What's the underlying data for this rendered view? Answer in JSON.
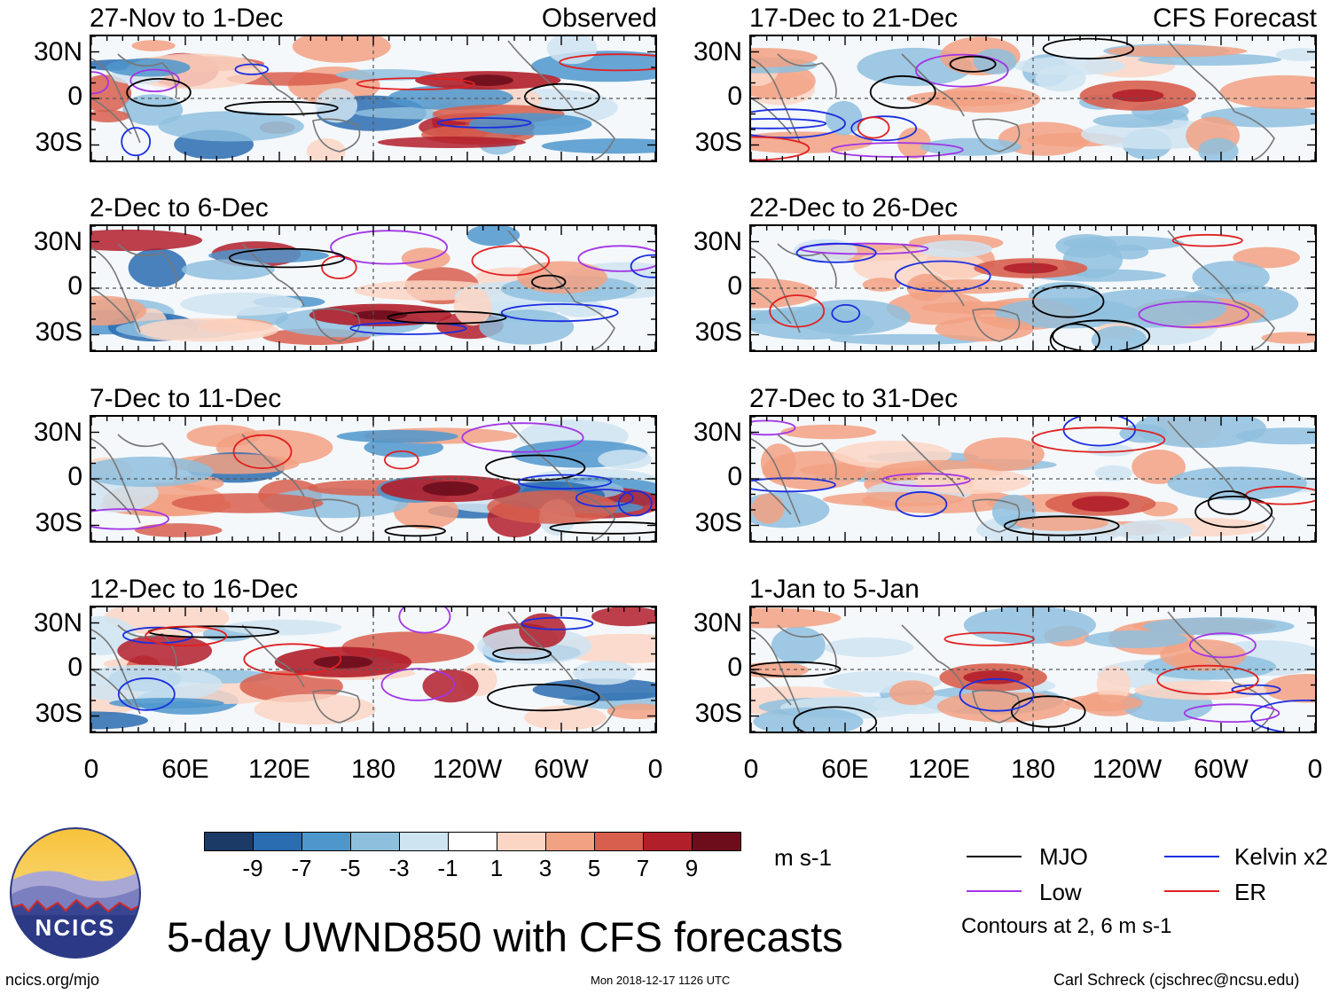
{
  "chart_data": {
    "type": "heatmap",
    "title": "5-day UWND850 with CFS forecasts",
    "variable": "UWND850",
    "units": "m s-1",
    "columns": [
      {
        "header_right": "Observed",
        "panels": [
          "27-Nov to 1-Dec",
          "2-Dec to 6-Dec",
          "7-Dec to 11-Dec",
          "12-Dec to 16-Dec"
        ]
      },
      {
        "header_right": "CFS Forecast",
        "panels": [
          "17-Dec to 21-Dec",
          "22-Dec to 26-Dec",
          "27-Dec to 31-Dec",
          "1-Jan to 5-Jan"
        ]
      }
    ],
    "y_ticks": [
      "30N",
      "0",
      "30S"
    ],
    "y_range": [
      -40,
      40
    ],
    "x_ticks": [
      "0",
      "60E",
      "120E",
      "180",
      "120W",
      "60W",
      "0"
    ],
    "x_range": [
      0,
      360
    ],
    "colorbar": {
      "tick_labels": [
        "-9",
        "-7",
        "-5",
        "-3",
        "-1",
        "1",
        "3",
        "5",
        "7",
        "9"
      ],
      "colors": [
        "#1b3a66",
        "#2a6cb0",
        "#4d97cc",
        "#8ec0de",
        "#cfe4f1",
        "#ffffff",
        "#fbd6c4",
        "#f2a183",
        "#d85f4e",
        "#b11f2b",
        "#6d0d1c"
      ]
    },
    "legend": [
      {
        "label": "MJO",
        "color": "#000000"
      },
      {
        "label": "Kelvin x2",
        "color": "#1a2ee0"
      },
      {
        "label": "Low",
        "color": "#a335e6"
      },
      {
        "label": "ER",
        "color": "#e02020"
      }
    ],
    "contour_note": "Contours at 2, 6 m s-1"
  },
  "footer": {
    "logo_text": "NCICS",
    "url": "ncics.org/mjo",
    "timestamp": "Mon 2018-12-17 1126 UTC",
    "credit": "Carl Schreck (cjschrec@ncsu.edu)"
  }
}
